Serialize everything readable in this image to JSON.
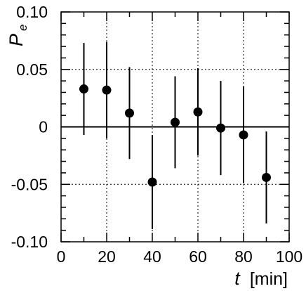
{
  "chart_data": {
    "type": "scatter",
    "title": "",
    "xlabel": {
      "symbol": "t",
      "unit": "[min]"
    },
    "ylabel": {
      "symbol": "P",
      "subscript": "e"
    },
    "xlim": [
      0,
      100
    ],
    "ylim": [
      -0.1,
      0.1
    ],
    "x_ticks": [
      0,
      20,
      40,
      60,
      80,
      100
    ],
    "x_tick_labels": [
      "0",
      "20",
      "40",
      "60",
      "80",
      "100"
    ],
    "y_ticks": [
      -0.1,
      -0.05,
      0,
      0.05,
      0.1
    ],
    "y_tick_labels": [
      "-0.10",
      "-0.05",
      "0",
      "0.05",
      "0.10"
    ],
    "grid": true,
    "zero_line": true,
    "series": [
      {
        "points": [
          {
            "x": 10,
            "y": 0.033,
            "err": 0.04
          },
          {
            "x": 20,
            "y": 0.032,
            "err": 0.042
          },
          {
            "x": 30,
            "y": 0.012,
            "err": 0.04
          },
          {
            "x": 40,
            "y": -0.048,
            "err": 0.041
          },
          {
            "x": 50,
            "y": 0.004,
            "err": 0.04
          },
          {
            "x": 60,
            "y": 0.013,
            "err": 0.038
          },
          {
            "x": 70,
            "y": -0.001,
            "err": 0.041
          },
          {
            "x": 80,
            "y": -0.007,
            "err": 0.042
          },
          {
            "x": 90,
            "y": -0.044,
            "err": 0.04
          }
        ],
        "color": "#000000"
      }
    ]
  }
}
